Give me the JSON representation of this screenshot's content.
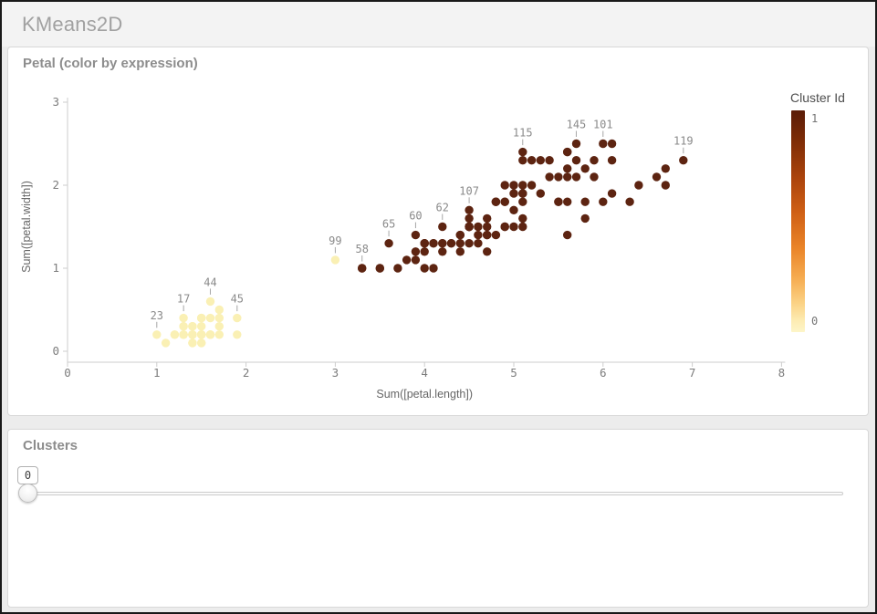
{
  "app": {
    "title": "KMeans2D"
  },
  "chart_panel": {
    "title": "Petal (color by expression)"
  },
  "legend": {
    "title": "Cluster Id",
    "top_label": "1",
    "bottom_label": "0",
    "color_top": "#5a1c08",
    "color_bottom": "#fdf5c8"
  },
  "clusters_panel": {
    "title": "Clusters",
    "value": "0"
  },
  "chart_data": {
    "type": "scatter",
    "title": "Petal (color by expression)",
    "xlabel": "Sum([petal.length])",
    "ylabel": "Sum([petal.width])",
    "xlim": [
      0,
      8
    ],
    "ylim": [
      0,
      3
    ],
    "x_ticks": [
      0,
      1,
      2,
      3,
      4,
      5,
      6,
      7,
      8
    ],
    "y_ticks": [
      0,
      1,
      2,
      3
    ],
    "grid": false,
    "legend_title": "Cluster Id",
    "legend_position": "right",
    "color_scale": {
      "min": 0,
      "max": 1,
      "min_color": "#faf0b4",
      "max_color": "#5d2411"
    },
    "point_format": [
      "id",
      "petal.length",
      "petal.width",
      "cluster_id"
    ],
    "points": [
      [
        1,
        1.4,
        0.2,
        0
      ],
      [
        2,
        1.4,
        0.2,
        0
      ],
      [
        3,
        1.3,
        0.2,
        0
      ],
      [
        4,
        1.5,
        0.2,
        0
      ],
      [
        5,
        1.4,
        0.2,
        0
      ],
      [
        6,
        1.7,
        0.4,
        0
      ],
      [
        7,
        1.4,
        0.3,
        0
      ],
      [
        8,
        1.5,
        0.2,
        0
      ],
      [
        9,
        1.4,
        0.2,
        0
      ],
      [
        10,
        1.5,
        0.1,
        0
      ],
      [
        11,
        1.5,
        0.2,
        0
      ],
      [
        12,
        1.6,
        0.2,
        0
      ],
      [
        13,
        1.4,
        0.1,
        0
      ],
      [
        14,
        1.1,
        0.1,
        0
      ],
      [
        15,
        1.2,
        0.2,
        0
      ],
      [
        16,
        1.5,
        0.4,
        0
      ],
      [
        17,
        1.3,
        0.4,
        0
      ],
      [
        18,
        1.4,
        0.3,
        0
      ],
      [
        19,
        1.7,
        0.3,
        0
      ],
      [
        20,
        1.5,
        0.3,
        0
      ],
      [
        21,
        1.7,
        0.2,
        0
      ],
      [
        22,
        1.5,
        0.4,
        0
      ],
      [
        23,
        1.0,
        0.2,
        0
      ],
      [
        24,
        1.7,
        0.5,
        0
      ],
      [
        25,
        1.9,
        0.2,
        0
      ],
      [
        26,
        1.6,
        0.2,
        0
      ],
      [
        27,
        1.6,
        0.4,
        0
      ],
      [
        28,
        1.5,
        0.2,
        0
      ],
      [
        29,
        1.4,
        0.2,
        0
      ],
      [
        30,
        1.6,
        0.2,
        0
      ],
      [
        31,
        1.6,
        0.2,
        0
      ],
      [
        32,
        1.5,
        0.4,
        0
      ],
      [
        33,
        1.5,
        0.1,
        0
      ],
      [
        34,
        1.4,
        0.2,
        0
      ],
      [
        35,
        1.5,
        0.2,
        0
      ],
      [
        36,
        1.2,
        0.2,
        0
      ],
      [
        37,
        1.3,
        0.2,
        0
      ],
      [
        38,
        1.4,
        0.1,
        0
      ],
      [
        39,
        1.3,
        0.2,
        0
      ],
      [
        40,
        1.5,
        0.2,
        0
      ],
      [
        41,
        1.3,
        0.3,
        0
      ],
      [
        42,
        1.3,
        0.3,
        0
      ],
      [
        43,
        1.3,
        0.2,
        0
      ],
      [
        44,
        1.6,
        0.6,
        0
      ],
      [
        45,
        1.9,
        0.4,
        0
      ],
      [
        46,
        1.4,
        0.3,
        0
      ],
      [
        47,
        1.6,
        0.2,
        0
      ],
      [
        48,
        1.4,
        0.2,
        0
      ],
      [
        49,
        1.5,
        0.2,
        0
      ],
      [
        50,
        1.4,
        0.2,
        0
      ],
      [
        51,
        4.7,
        1.4,
        1
      ],
      [
        52,
        4.5,
        1.5,
        1
      ],
      [
        53,
        4.9,
        1.5,
        1
      ],
      [
        54,
        4.0,
        1.3,
        1
      ],
      [
        55,
        4.6,
        1.5,
        1
      ],
      [
        56,
        4.5,
        1.3,
        1
      ],
      [
        57,
        4.7,
        1.6,
        1
      ],
      [
        58,
        3.3,
        1.0,
        1
      ],
      [
        59,
        4.6,
        1.3,
        1
      ],
      [
        60,
        3.9,
        1.4,
        1
      ],
      [
        61,
        3.5,
        1.0,
        1
      ],
      [
        62,
        4.2,
        1.5,
        1
      ],
      [
        63,
        4.0,
        1.0,
        1
      ],
      [
        64,
        4.7,
        1.4,
        1
      ],
      [
        65,
        3.6,
        1.3,
        1
      ],
      [
        66,
        4.4,
        1.4,
        1
      ],
      [
        67,
        4.5,
        1.5,
        1
      ],
      [
        68,
        4.1,
        1.0,
        1
      ],
      [
        69,
        4.5,
        1.5,
        1
      ],
      [
        70,
        3.9,
        1.1,
        1
      ],
      [
        71,
        4.8,
        1.8,
        1
      ],
      [
        72,
        4.0,
        1.3,
        1
      ],
      [
        73,
        4.9,
        1.5,
        1
      ],
      [
        74,
        4.7,
        1.2,
        1
      ],
      [
        75,
        4.3,
        1.3,
        1
      ],
      [
        76,
        4.4,
        1.4,
        1
      ],
      [
        77,
        4.8,
        1.4,
        1
      ],
      [
        78,
        5.0,
        1.7,
        1
      ],
      [
        79,
        4.5,
        1.5,
        1
      ],
      [
        80,
        3.5,
        1.0,
        1
      ],
      [
        81,
        3.8,
        1.1,
        1
      ],
      [
        82,
        3.7,
        1.0,
        1
      ],
      [
        83,
        3.9,
        1.2,
        1
      ],
      [
        84,
        5.1,
        1.6,
        1
      ],
      [
        85,
        4.5,
        1.5,
        1
      ],
      [
        86,
        4.5,
        1.6,
        1
      ],
      [
        87,
        4.7,
        1.5,
        1
      ],
      [
        88,
        4.4,
        1.3,
        1
      ],
      [
        89,
        4.1,
        1.3,
        1
      ],
      [
        90,
        4.0,
        1.3,
        1
      ],
      [
        91,
        4.4,
        1.2,
        1
      ],
      [
        92,
        4.6,
        1.4,
        1
      ],
      [
        93,
        4.0,
        1.2,
        1
      ],
      [
        94,
        3.3,
        1.0,
        1
      ],
      [
        95,
        4.2,
        1.3,
        1
      ],
      [
        96,
        4.2,
        1.2,
        1
      ],
      [
        97,
        4.2,
        1.3,
        1
      ],
      [
        98,
        4.3,
        1.3,
        1
      ],
      [
        99,
        3.0,
        1.1,
        0
      ],
      [
        100,
        4.1,
        1.3,
        1
      ],
      [
        101,
        6.0,
        2.5,
        1
      ],
      [
        102,
        5.1,
        1.9,
        1
      ],
      [
        103,
        5.9,
        2.1,
        1
      ],
      [
        104,
        5.6,
        1.8,
        1
      ],
      [
        105,
        5.8,
        2.2,
        1
      ],
      [
        106,
        6.6,
        2.1,
        1
      ],
      [
        107,
        4.5,
        1.7,
        1
      ],
      [
        108,
        6.3,
        1.8,
        1
      ],
      [
        109,
        5.8,
        1.8,
        1
      ],
      [
        110,
        6.1,
        2.5,
        1
      ],
      [
        111,
        5.1,
        2.0,
        1
      ],
      [
        112,
        5.3,
        1.9,
        1
      ],
      [
        113,
        5.5,
        2.1,
        1
      ],
      [
        114,
        5.0,
        2.0,
        1
      ],
      [
        115,
        5.1,
        2.4,
        1
      ],
      [
        116,
        5.3,
        2.3,
        1
      ],
      [
        117,
        5.5,
        1.8,
        1
      ],
      [
        118,
        6.7,
        2.2,
        1
      ],
      [
        119,
        6.9,
        2.3,
        1
      ],
      [
        120,
        5.0,
        1.5,
        1
      ],
      [
        121,
        5.7,
        2.3,
        1
      ],
      [
        122,
        4.9,
        2.0,
        1
      ],
      [
        123,
        6.7,
        2.0,
        1
      ],
      [
        124,
        4.9,
        1.8,
        1
      ],
      [
        125,
        5.7,
        2.1,
        1
      ],
      [
        126,
        6.0,
        1.8,
        1
      ],
      [
        127,
        4.8,
        1.8,
        1
      ],
      [
        128,
        4.9,
        1.8,
        1
      ],
      [
        129,
        5.6,
        2.1,
        1
      ],
      [
        130,
        5.8,
        1.6,
        1
      ],
      [
        131,
        6.1,
        1.9,
        1
      ],
      [
        132,
        6.4,
        2.0,
        1
      ],
      [
        133,
        5.6,
        2.2,
        1
      ],
      [
        134,
        5.1,
        1.5,
        1
      ],
      [
        135,
        5.6,
        1.4,
        1
      ],
      [
        136,
        6.1,
        2.3,
        1
      ],
      [
        137,
        5.6,
        2.4,
        1
      ],
      [
        138,
        5.5,
        1.8,
        1
      ],
      [
        139,
        4.8,
        1.8,
        1
      ],
      [
        140,
        5.4,
        2.1,
        1
      ],
      [
        141,
        5.6,
        2.4,
        1
      ],
      [
        142,
        5.1,
        2.3,
        1
      ],
      [
        143,
        5.1,
        1.9,
        1
      ],
      [
        144,
        5.9,
        2.3,
        1
      ],
      [
        145,
        5.7,
        2.5,
        1
      ],
      [
        146,
        5.2,
        2.3,
        1
      ],
      [
        147,
        5.0,
        1.9,
        1
      ],
      [
        148,
        5.2,
        2.0,
        1
      ],
      [
        149,
        5.4,
        2.3,
        1
      ],
      [
        150,
        5.1,
        1.8,
        1
      ]
    ],
    "labeled_ids": [
      23,
      17,
      44,
      45,
      99,
      58,
      65,
      60,
      62,
      107,
      115,
      145,
      101,
      119
    ]
  }
}
